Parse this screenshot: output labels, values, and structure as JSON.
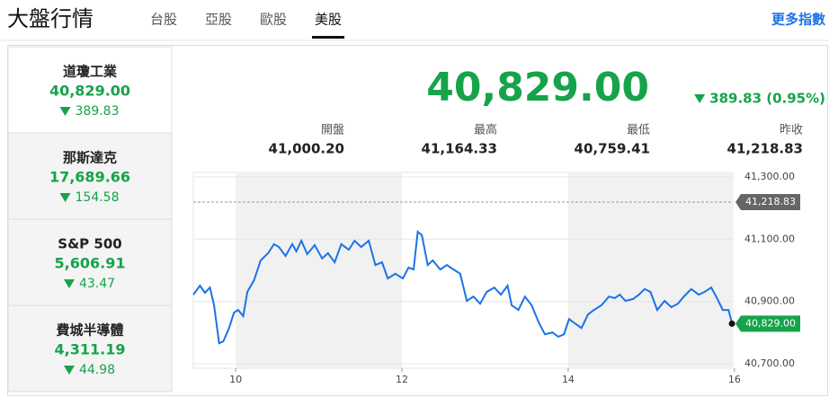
{
  "header": {
    "title": "大盤行情",
    "tabs": [
      "台股",
      "亞股",
      "歐股",
      "美股"
    ],
    "active_tab": 3,
    "more_link": "更多指數"
  },
  "sidebar": {
    "active_index": 0,
    "items": [
      {
        "name": "道瓊工業",
        "value": "40,829.00",
        "change": "389.83"
      },
      {
        "name": "那斯達克",
        "value": "17,689.66",
        "change": "154.58"
      },
      {
        "name": "S&P 500",
        "value": "5,606.91",
        "change": "43.47"
      },
      {
        "name": "費城半導體",
        "value": "4,311.19",
        "change": "44.98"
      }
    ]
  },
  "quote": {
    "price": "40,829.00",
    "change": "389.83 (0.95%)",
    "stats": [
      {
        "label": "開盤",
        "value": "41,000.20"
      },
      {
        "label": "最高",
        "value": "41,164.33"
      },
      {
        "label": "最低",
        "value": "40,759.41"
      },
      {
        "label": "昨收",
        "value": "41,218.83"
      }
    ]
  },
  "chart_data": {
    "type": "line",
    "x": [
      9.49,
      9.57,
      9.63,
      9.69,
      9.74,
      9.8,
      9.85,
      9.92,
      9.98,
      10.03,
      10.09,
      10.14,
      10.22,
      10.3,
      10.39,
      10.46,
      10.52,
      10.6,
      10.68,
      10.73,
      10.79,
      10.86,
      10.95,
      11.04,
      11.11,
      11.19,
      11.27,
      11.36,
      11.43,
      11.51,
      11.6,
      11.68,
      11.76,
      11.83,
      11.92,
      12.01,
      12.08,
      12.14,
      12.19,
      12.24,
      12.31,
      12.37,
      12.46,
      12.54,
      12.62,
      12.7,
      12.78,
      12.86,
      12.94,
      13.02,
      13.11,
      13.19,
      13.27,
      13.32,
      13.4,
      13.48,
      13.56,
      13.65,
      13.72,
      13.81,
      13.88,
      13.95,
      14.01,
      14.08,
      14.16,
      14.24,
      14.31,
      14.4,
      14.49,
      14.56,
      14.62,
      14.69,
      14.78,
      14.85,
      14.92,
      14.99,
      15.07,
      15.16,
      15.24,
      15.32,
      15.39,
      15.48,
      15.57,
      15.64,
      15.72,
      15.78,
      15.86,
      15.93,
      15.97
    ],
    "series": [
      {
        "color": "#1a73e8",
        "values": [
          40922,
          40951,
          40928,
          40945,
          40888,
          40766,
          40772,
          40815,
          40865,
          40873,
          40853,
          40931,
          40968,
          41032,
          41055,
          41084,
          41075,
          41046,
          41084,
          41061,
          41095,
          41052,
          41081,
          41038,
          41055,
          41026,
          41084,
          41066,
          41095,
          41075,
          41095,
          41017,
          41026,
          40974,
          40989,
          40974,
          41009,
          41003,
          41124,
          41113,
          41017,
          41032,
          41003,
          41017,
          41003,
          40989,
          40902,
          40916,
          40893,
          40931,
          40945,
          40922,
          40951,
          40888,
          40873,
          40916,
          40888,
          40830,
          40795,
          40801,
          40787,
          40795,
          40844,
          40830,
          40815,
          40859,
          40873,
          40888,
          40916,
          40911,
          40922,
          40902,
          40908,
          40922,
          40940,
          40931,
          40873,
          40902,
          40882,
          40893,
          40916,
          40940,
          40922,
          40931,
          40945,
          40916,
          40873,
          40873,
          40829
        ]
      }
    ],
    "xlim": [
      9.49,
      15.98
    ],
    "xticks": [
      10,
      12,
      14,
      16
    ],
    "ylim": [
      40686,
      41314
    ],
    "yticks": [
      {
        "value": 40700,
        "label": "40,700.00"
      },
      {
        "value": 40900,
        "label": "40,900.00"
      },
      {
        "value": 41100,
        "label": "41,100.00"
      },
      {
        "value": 41300,
        "label": "41,300.00"
      }
    ],
    "reference_line": {
      "value": 41218.83,
      "label": "41,218.83"
    },
    "last_label": "40,829.00",
    "grid": true
  }
}
